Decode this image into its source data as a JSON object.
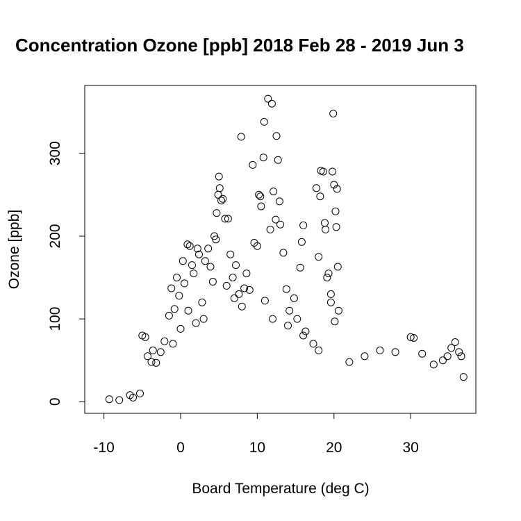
{
  "chart_data": {
    "type": "scatter",
    "title": "Concentration Ozone [ppb] 2018 Feb 28 - 2019 Jun 3",
    "xlabel": "Board Temperature (deg C)",
    "ylabel": "Ozone [ppb]",
    "x_ticks": [
      -10,
      0,
      10,
      20,
      30
    ],
    "y_ticks": [
      0,
      100,
      200,
      300
    ],
    "xlim": [
      -12.5,
      38.5
    ],
    "ylim": [
      -14,
      382
    ],
    "grid": false,
    "marker": "open-circle",
    "marker_color": "#000000",
    "points": [
      [
        -9.3,
        3
      ],
      [
        -6.6,
        8
      ],
      [
        -6.2,
        5
      ],
      [
        -5.3,
        10
      ],
      [
        -5.0,
        80
      ],
      [
        -4.6,
        78
      ],
      [
        -4.3,
        55
      ],
      [
        -3.8,
        48
      ],
      [
        -3.6,
        62
      ],
      [
        -3.2,
        47
      ],
      [
        -2.6,
        60
      ],
      [
        -2.1,
        73
      ],
      [
        -1.5,
        104
      ],
      [
        -1.2,
        137
      ],
      [
        -0.8,
        112
      ],
      [
        -0.5,
        150
      ],
      [
        -0.2,
        128
      ],
      [
        0.3,
        170
      ],
      [
        0.5,
        143
      ],
      [
        0.9,
        190
      ],
      [
        1.2,
        188
      ],
      [
        1.5,
        165
      ],
      [
        1.7,
        155
      ],
      [
        2.2,
        185
      ],
      [
        2.4,
        178
      ],
      [
        2.8,
        120
      ],
      [
        3.2,
        170
      ],
      [
        3.6,
        185
      ],
      [
        3.9,
        163
      ],
      [
        4.2,
        145
      ],
      [
        4.4,
        200
      ],
      [
        4.6,
        196
      ],
      [
        4.7,
        228
      ],
      [
        4.9,
        250
      ],
      [
        5.0,
        272
      ],
      [
        5.1,
        258
      ],
      [
        5.3,
        243
      ],
      [
        5.5,
        245
      ],
      [
        5.8,
        221
      ],
      [
        6.2,
        221
      ],
      [
        6.5,
        178
      ],
      [
        6.8,
        150
      ],
      [
        7.2,
        165
      ],
      [
        7.6,
        130
      ],
      [
        7.9,
        320
      ],
      [
        8.3,
        137
      ],
      [
        8.6,
        155
      ],
      [
        9.0,
        135
      ],
      [
        9.4,
        286
      ],
      [
        9.6,
        192
      ],
      [
        10.0,
        188
      ],
      [
        10.2,
        250
      ],
      [
        10.4,
        248
      ],
      [
        10.5,
        236
      ],
      [
        10.8,
        295
      ],
      [
        10.9,
        338
      ],
      [
        11.4,
        366
      ],
      [
        11.7,
        208
      ],
      [
        11.9,
        360
      ],
      [
        12.1,
        254
      ],
      [
        12.4,
        220
      ],
      [
        12.5,
        321
      ],
      [
        12.7,
        292
      ],
      [
        12.9,
        242
      ],
      [
        13.0,
        214
      ],
      [
        13.4,
        180
      ],
      [
        13.8,
        136
      ],
      [
        14.2,
        110
      ],
      [
        14.8,
        125
      ],
      [
        15.2,
        100
      ],
      [
        15.6,
        162
      ],
      [
        15.8,
        193
      ],
      [
        16.0,
        213
      ],
      [
        16.3,
        85
      ],
      [
        17.3,
        70
      ],
      [
        17.7,
        258
      ],
      [
        18.0,
        175
      ],
      [
        18.2,
        248
      ],
      [
        18.3,
        279
      ],
      [
        18.6,
        278
      ],
      [
        18.8,
        216
      ],
      [
        18.9,
        208
      ],
      [
        19.1,
        150
      ],
      [
        19.3,
        155
      ],
      [
        19.6,
        130
      ],
      [
        19.8,
        278
      ],
      [
        19.9,
        348
      ],
      [
        20.0,
        262
      ],
      [
        20.2,
        230
      ],
      [
        20.3,
        211
      ],
      [
        20.4,
        257
      ],
      [
        20.5,
        163
      ],
      [
        20.6,
        110
      ],
      [
        20.1,
        97
      ],
      [
        19.6,
        120
      ],
      [
        30.0,
        78
      ],
      [
        30.4,
        77
      ],
      [
        34.2,
        50
      ],
      [
        34.8,
        55
      ],
      [
        35.3,
        65
      ],
      [
        35.8,
        72
      ],
      [
        36.3,
        60
      ],
      [
        36.6,
        55
      ],
      [
        36.9,
        30
      ],
      [
        -8.0,
        2
      ],
      [
        28.0,
        60
      ],
      [
        24.0,
        55
      ],
      [
        26.0,
        62
      ],
      [
        22.0,
        48
      ],
      [
        31.5,
        58
      ],
      [
        33.0,
        45
      ],
      [
        2.0,
        95
      ],
      [
        0.0,
        88
      ],
      [
        -1.0,
        70
      ],
      [
        1.0,
        110
      ],
      [
        3.0,
        100
      ],
      [
        6.0,
        140
      ],
      [
        7.0,
        125
      ],
      [
        8.0,
        115
      ],
      [
        11.0,
        122
      ],
      [
        12.0,
        100
      ],
      [
        14.0,
        92
      ],
      [
        16.0,
        80
      ],
      [
        18.0,
        62
      ]
    ]
  }
}
